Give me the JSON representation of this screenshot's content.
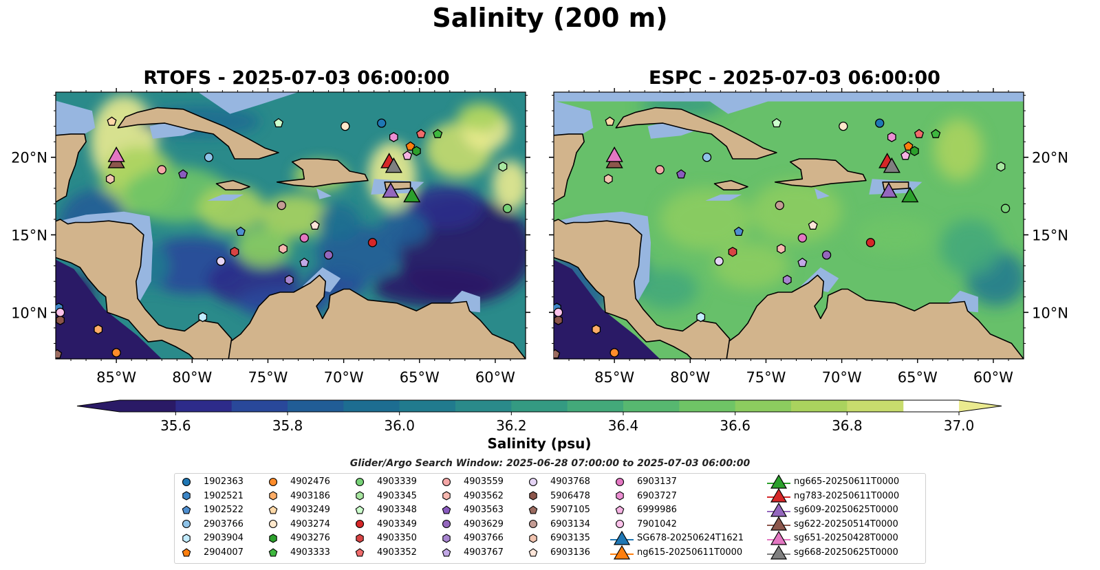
{
  "figure": {
    "title": "Salinity (200 m)",
    "search_window": "Glider/Argo Search Window: 2025-06-28 07:00:00 to 2025-07-03 06:00:00"
  },
  "colors": {
    "land": "#d2b48c",
    "shelf": "#97b6e0",
    "colormap": [
      "#2a1a66",
      "#2d2b8a",
      "#29489a",
      "#215d96",
      "#1d6d91",
      "#217b8e",
      "#2a8a8a",
      "#349a82",
      "#43a97a",
      "#57b870",
      "#6fc466",
      "#8ccc5f",
      "#aad35e",
      "#c8dc6d",
      "#eaea8f"
    ],
    "rtofs_base": "#2a8a8a",
    "espc_base": "#67c06a"
  },
  "chart_data": [
    {
      "type": "heatmap",
      "title": "RTOFS - 2025-07-03 06:00:00",
      "lon_range": [
        -89,
        -58
      ],
      "lat_range": [
        7,
        24.2
      ],
      "x_ticks": [
        "85°W",
        "80°W",
        "75°W",
        "70°W",
        "65°W",
        "60°W"
      ],
      "y_ticks": [
        "20°N",
        "15°N",
        "10°N"
      ],
      "tick_side_y": "left",
      "field_description": "Eddy-rich salinity field; high-salinity filaments (>36.8) in western Caribbean and east of Hispaniola, low salinity (<35.8) in eastern basin and south."
    },
    {
      "type": "heatmap",
      "title": "ESPC - 2025-07-03 06:00:00",
      "lon_range": [
        -89,
        -58
      ],
      "lat_range": [
        7,
        24.2
      ],
      "x_ticks": [
        "85°W",
        "80°W",
        "75°W",
        "70°W",
        "65°W",
        "60°W"
      ],
      "y_ticks": [
        "20°N",
        "15°N",
        "10°N"
      ],
      "tick_side_y": "right",
      "field_description": "Smoother field dominated by 36.6–36.8 psu with lower values (<36.0) near Panama and in southeast."
    }
  ],
  "x_tick_values": [
    -85,
    -80,
    -75,
    -70,
    -65,
    -60
  ],
  "y_tick_values": [
    20,
    15,
    10
  ],
  "colorbar": {
    "label": "Salinity (psu)",
    "ticks": [
      "35.6",
      "35.8",
      "36.0",
      "36.2",
      "36.4",
      "36.6",
      "36.8",
      "37.0"
    ],
    "tick_values": [
      35.6,
      35.8,
      36.0,
      36.2,
      36.4,
      36.6,
      36.8,
      37.0
    ],
    "range": [
      35.5,
      37.0
    ],
    "extend": "both"
  },
  "platforms": [
    {
      "id": "1902363",
      "color": "#1f77b4",
      "marker": "circle",
      "lon": -67.5,
      "lat": 22.2
    },
    {
      "id": "1902521",
      "color": "#3d86c6",
      "marker": "hexagon",
      "lon": -88.8,
      "lat": 10.3
    },
    {
      "id": "1902522",
      "color": "#4f8fd0",
      "marker": "pentagon",
      "lon": -76.8,
      "lat": 15.2
    },
    {
      "id": "2903766",
      "color": "#8fc3e8",
      "marker": "circle",
      "lon": -78.9,
      "lat": 20.0
    },
    {
      "id": "2903904",
      "color": "#c2ecff",
      "marker": "hexagon",
      "lon": -79.3,
      "lat": 9.7
    },
    {
      "id": "2904007",
      "color": "#ff7f0e",
      "marker": "pentagon",
      "lon": -65.6,
      "lat": 20.7
    },
    {
      "id": "4902476",
      "color": "#ff8c2a",
      "marker": "circle",
      "lon": -85.0,
      "lat": 7.4
    },
    {
      "id": "4903186",
      "color": "#ffad66",
      "marker": "hexagon",
      "lon": -86.2,
      "lat": 8.9
    },
    {
      "id": "4903249",
      "color": "#ffd9a8",
      "marker": "pentagon",
      "lon": -85.3,
      "lat": 22.3
    },
    {
      "id": "4903274",
      "color": "#ffe8cc",
      "marker": "circle",
      "lon": -69.9,
      "lat": 22.0
    },
    {
      "id": "4903276",
      "color": "#2ca02c",
      "marker": "hexagon",
      "lon": -65.2,
      "lat": 20.4
    },
    {
      "id": "4903333",
      "color": "#3fb83f",
      "marker": "pentagon",
      "lon": -63.8,
      "lat": 21.5
    },
    {
      "id": "4903339",
      "color": "#77d177",
      "marker": "circle",
      "lon": -59.2,
      "lat": 16.7
    },
    {
      "id": "4903345",
      "color": "#a8e6a0",
      "marker": "hexagon",
      "lon": -59.5,
      "lat": 19.4
    },
    {
      "id": "4903348",
      "color": "#ccffcc",
      "marker": "pentagon",
      "lon": -74.3,
      "lat": 22.2
    },
    {
      "id": "4903349",
      "color": "#d62728",
      "marker": "circle",
      "lon": -68.1,
      "lat": 14.5
    },
    {
      "id": "4903350",
      "color": "#d84444",
      "marker": "hexagon",
      "lon": -77.2,
      "lat": 13.9
    },
    {
      "id": "4903352",
      "color": "#f06b6b",
      "marker": "pentagon",
      "lon": -64.9,
      "lat": 21.5
    },
    {
      "id": "4903559",
      "color": "#f4a6a6",
      "marker": "circle",
      "lon": -82.0,
      "lat": 19.2
    },
    {
      "id": "4903562",
      "color": "#f7b8b0",
      "marker": "hexagon",
      "lon": -74.0,
      "lat": 14.1
    },
    {
      "id": "4903563",
      "color": "#8a5bbf",
      "marker": "pentagon",
      "lon": -80.6,
      "lat": 18.9
    },
    {
      "id": "4903629",
      "color": "#9467bd",
      "marker": "circle",
      "lon": -71.0,
      "lat": 13.7
    },
    {
      "id": "4903766",
      "color": "#a785d0",
      "marker": "hexagon",
      "lon": -73.6,
      "lat": 12.1
    },
    {
      "id": "4903767",
      "color": "#c2a8e6",
      "marker": "pentagon",
      "lon": -72.6,
      "lat": 13.2
    },
    {
      "id": "4903768",
      "color": "#e5d4f5",
      "marker": "circle",
      "lon": -78.1,
      "lat": 13.3
    },
    {
      "id": "5906478",
      "color": "#8c564b",
      "marker": "hexagon",
      "lon": -88.7,
      "lat": 9.5
    },
    {
      "id": "5907105",
      "color": "#9b6b60",
      "marker": "pentagon",
      "lon": -88.9,
      "lat": 7.3
    },
    {
      "id": "6903134",
      "color": "#c49c94",
      "marker": "circle",
      "lon": -74.1,
      "lat": 16.9
    },
    {
      "id": "6903135",
      "color": "#f2c4b0",
      "marker": "hexagon",
      "lon": -85.4,
      "lat": 18.6
    },
    {
      "id": "6903136",
      "color": "#ffe6d9",
      "marker": "pentagon",
      "lon": -71.9,
      "lat": 15.6
    },
    {
      "id": "6903137",
      "color": "#e377c2",
      "marker": "circle",
      "lon": -72.6,
      "lat": 14.8
    },
    {
      "id": "6903727",
      "color": "#ec8fd3",
      "marker": "hexagon",
      "lon": -66.7,
      "lat": 21.3
    },
    {
      "id": "6999986",
      "color": "#f5b3e3",
      "marker": "pentagon",
      "lon": -65.8,
      "lat": 20.1
    },
    {
      "id": "7901042",
      "color": "#fcc2ea",
      "marker": "circle",
      "lon": -88.7,
      "lat": 10.0
    }
  ],
  "gliders": [
    {
      "id": "SG678-20250624T1621",
      "color": "#1f77b4",
      "lon": null,
      "lat": null
    },
    {
      "id": "ng615-20250611T0000",
      "color": "#ff7f0e",
      "lon": null,
      "lat": null
    },
    {
      "id": "ng665-20250611T0000",
      "color": "#2ca02c",
      "lon": -65.5,
      "lat": 17.5
    },
    {
      "id": "ng783-20250611T0000",
      "color": "#d62728",
      "lon": -67.0,
      "lat": 19.7
    },
    {
      "id": "sg609-20250625T0000",
      "color": "#9467bd",
      "lon": -66.9,
      "lat": 17.8
    },
    {
      "id": "sg622-20250514T0000",
      "color": "#8c564b",
      "lon": -85.0,
      "lat": 19.7
    },
    {
      "id": "sg651-20250428T0000",
      "color": "#e377c2",
      "lon": -85.0,
      "lat": 20.1
    },
    {
      "id": "sg668-20250625T0000",
      "color": "#7f7f7f",
      "lon": -66.7,
      "lat": 19.4
    }
  ]
}
